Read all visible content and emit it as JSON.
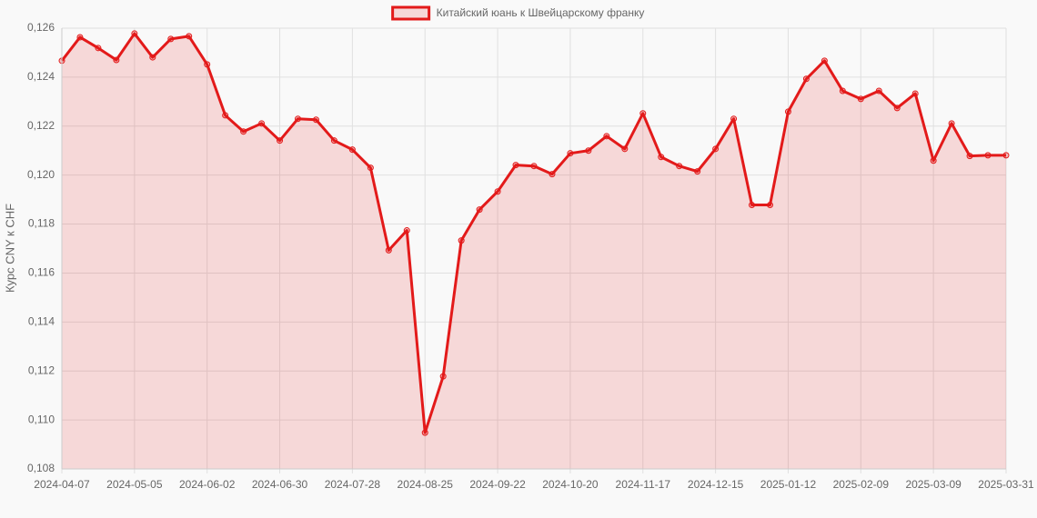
{
  "chart_data": {
    "type": "line",
    "y_label": "Курс CNY к CHF",
    "categories": [
      "2024-04-07",
      null,
      null,
      null,
      "2024-05-05",
      null,
      null,
      null,
      "2024-06-02",
      null,
      null,
      null,
      "2024-06-30",
      null,
      null,
      null,
      "2024-07-28",
      null,
      null,
      null,
      "2024-08-25",
      null,
      null,
      null,
      "2024-09-22",
      null,
      null,
      null,
      "2024-10-20",
      null,
      null,
      null,
      "2024-11-17",
      null,
      null,
      null,
      "2024-12-15",
      null,
      null,
      null,
      "2025-01-12",
      null,
      null,
      null,
      "2025-02-09",
      null,
      null,
      null,
      "2025-03-09",
      null,
      null,
      null,
      "2025-03-31"
    ],
    "series": [
      {
        "name": "Китайский юань к Швейцарскому франку",
        "color": "#e31a1a",
        "values": [
          0.12467,
          0.12563,
          0.12519,
          0.1247,
          0.12578,
          0.12481,
          0.12556,
          0.12567,
          0.12452,
          0.12244,
          0.12178,
          0.12211,
          0.12141,
          0.1223,
          0.12226,
          0.12141,
          0.12104,
          0.1203,
          0.11693,
          0.11774,
          0.10948,
          0.11178,
          0.11733,
          0.11859,
          0.11933,
          0.12041,
          0.12037,
          0.12004,
          0.12089,
          0.121,
          0.12159,
          0.12107,
          0.12252,
          0.12074,
          0.12037,
          0.12015,
          0.12107,
          0.1223,
          0.11878,
          0.11878,
          0.12259,
          0.12393,
          0.12467,
          0.12344,
          0.12311,
          0.12344,
          0.12274,
          0.12333,
          0.12059,
          0.12211,
          0.12078,
          0.12081,
          0.12081
        ]
      }
    ],
    "ylim": [
      0.108,
      0.126
    ],
    "yticks": [
      {
        "value": 0.108,
        "label": "0,108"
      },
      {
        "value": 0.11,
        "label": "0,110"
      },
      {
        "value": 0.112,
        "label": "0,112"
      },
      {
        "value": 0.114,
        "label": "0,114"
      },
      {
        "value": 0.116,
        "label": "0,116"
      },
      {
        "value": 0.118,
        "label": "0,118"
      },
      {
        "value": 0.12,
        "label": "0,120"
      },
      {
        "value": 0.122,
        "label": "0,122"
      },
      {
        "value": 0.124,
        "label": "0,124"
      },
      {
        "value": 0.126,
        "label": "0,126"
      }
    ],
    "grid": true,
    "legend": "top"
  }
}
